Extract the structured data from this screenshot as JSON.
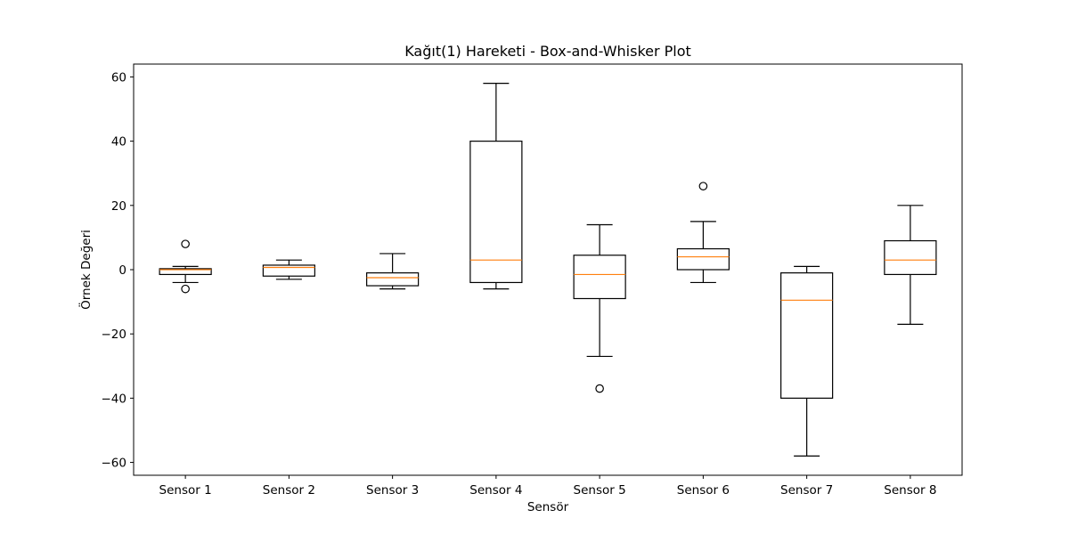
{
  "chart_data": {
    "type": "box",
    "title": "Kağıt(1) Hareketi - Box-and-Whisker Plot",
    "xlabel": "Sensör",
    "ylabel": "Örnek Değeri",
    "ylim": [
      -64,
      64
    ],
    "yticks": [
      -60,
      -40,
      -20,
      0,
      20,
      40,
      60
    ],
    "grid": false,
    "colors": {
      "box": "#000000",
      "median": "#ff7f0e",
      "flier": "#000000"
    },
    "categories": [
      "Sensor 1",
      "Sensor 2",
      "Sensor 3",
      "Sensor 4",
      "Sensor 5",
      "Sensor 6",
      "Sensor 7",
      "Sensor 8"
    ],
    "boxes": [
      {
        "label": "Sensor 1",
        "whisker_low": -4,
        "q1": -1.5,
        "median": 0,
        "q3": 0.3,
        "whisker_high": 1,
        "outliers": [
          8,
          -6
        ]
      },
      {
        "label": "Sensor 2",
        "whisker_low": -3,
        "q1": -2,
        "median": 0.7,
        "q3": 1.4,
        "whisker_high": 3,
        "outliers": []
      },
      {
        "label": "Sensor 3",
        "whisker_low": -6,
        "q1": -5,
        "median": -2.5,
        "q3": -1,
        "whisker_high": 5,
        "outliers": []
      },
      {
        "label": "Sensor 4",
        "whisker_low": -6,
        "q1": -4,
        "median": 3,
        "q3": 40,
        "whisker_high": 58,
        "outliers": []
      },
      {
        "label": "Sensor 5",
        "whisker_low": -27,
        "q1": -9,
        "median": -1.5,
        "q3": 4.5,
        "whisker_high": 14,
        "outliers": [
          -37
        ]
      },
      {
        "label": "Sensor 6",
        "whisker_low": -4,
        "q1": 0,
        "median": 4,
        "q3": 6.5,
        "whisker_high": 15,
        "outliers": [
          26
        ]
      },
      {
        "label": "Sensor 7",
        "whisker_low": -58,
        "q1": -40,
        "median": -9.5,
        "q3": -1,
        "whisker_high": 1,
        "outliers": []
      },
      {
        "label": "Sensor 8",
        "whisker_low": -17,
        "q1": -1.5,
        "median": 3,
        "q3": 9,
        "whisker_high": 20,
        "outliers": []
      }
    ]
  }
}
